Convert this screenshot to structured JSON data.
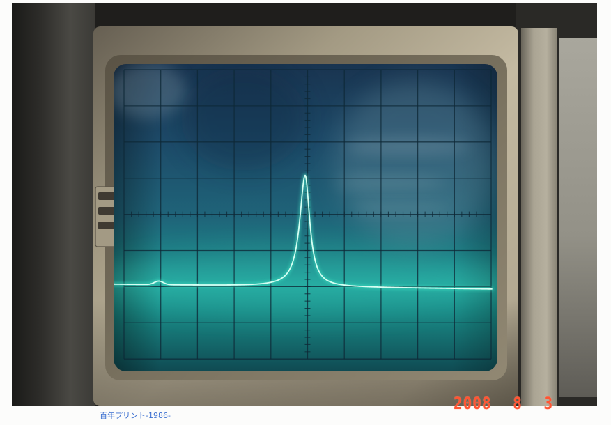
{
  "photo": {
    "caption": "百年プリント-1986-",
    "date_stamp": "2008 8 3"
  },
  "colors": {
    "trace_core": "#d6fff3",
    "trace_glow": "#3fe3c4",
    "date_stamp": "#ff5533",
    "caption": "#3a6ed0"
  }
}
